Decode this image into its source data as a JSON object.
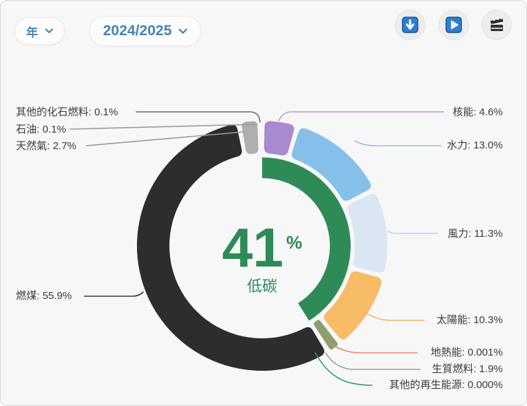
{
  "toolbar": {
    "period_dropdown": {
      "value": "年"
    },
    "year_dropdown": {
      "value": "2024/2025"
    },
    "buttons": [
      {
        "id": "download",
        "icon": "download-icon"
      },
      {
        "id": "play",
        "icon": "play-icon"
      },
      {
        "id": "animation",
        "icon": "clapperboard-icon"
      }
    ]
  },
  "chart_data": {
    "type": "pie",
    "variant": "donut",
    "unit": "%",
    "interval": "年",
    "period": "2024/2025",
    "legend_position": "callouts-around-donut",
    "center": {
      "value": "41",
      "unit": "%",
      "caption": "低碳"
    },
    "low_carbon_total_pct": 41,
    "arc_color": "#2e8b57",
    "label_separator": ": ",
    "slices": [
      {
        "id": "nuclear",
        "label": "核能",
        "value": 4.6,
        "display_value": "4.6%",
        "color": "#a88ad1",
        "line_color": "#b497d8",
        "low_carbon": true
      },
      {
        "id": "hydro",
        "label": "水力",
        "value": 13.0,
        "display_value": "13.0%",
        "color": "#86c0ea",
        "line_color": "#8fc0e6",
        "low_carbon": true
      },
      {
        "id": "wind",
        "label": "風力",
        "value": 11.3,
        "display_value": "11.3%",
        "color": "#dbe6f3",
        "line_color": "#bcd2e8",
        "low_carbon": true
      },
      {
        "id": "solar",
        "label": "太陽能",
        "value": 10.3,
        "display_value": "10.3%",
        "color": "#f8bb66",
        "line_color": "#f2b267",
        "low_carbon": true
      },
      {
        "id": "geothermal",
        "label": "地熱能",
        "value": 0.001,
        "display_value": "0.001%",
        "color": "#e8876a",
        "line_color": "#e8876a",
        "low_carbon": true
      },
      {
        "id": "biofuel",
        "label": "生質燃料",
        "value": 1.9,
        "display_value": "1.9%",
        "color": "#8e9e71",
        "line_color": "#9aa57c",
        "low_carbon": true
      },
      {
        "id": "other_renewables",
        "label": "其他的再生能源",
        "value": 0.0,
        "display_value": "0.000%",
        "color": "#2f9e68",
        "line_color": "#2f9e68",
        "low_carbon": true
      },
      {
        "id": "coal",
        "label": "燃煤",
        "value": 55.9,
        "display_value": "55.9%",
        "color": "#2d2d2d",
        "line_color": "#3a3a3a",
        "low_carbon": false
      },
      {
        "id": "gas",
        "label": "天然氣",
        "value": 2.7,
        "display_value": "2.7%",
        "color": "#b1aeae",
        "line_color": "#9b9b9b",
        "low_carbon": false
      },
      {
        "id": "oil",
        "label": "石油",
        "value": 0.1,
        "display_value": "0.1%",
        "color": "#9a9a9a",
        "line_color": "#9b9b9b",
        "low_carbon": false
      },
      {
        "id": "other_fossil",
        "label": "其他的化石燃料",
        "value": 0.1,
        "display_value": "0.1%",
        "color": "#7a7a7a",
        "line_color": "#6d6d6d",
        "low_carbon": false
      }
    ]
  }
}
